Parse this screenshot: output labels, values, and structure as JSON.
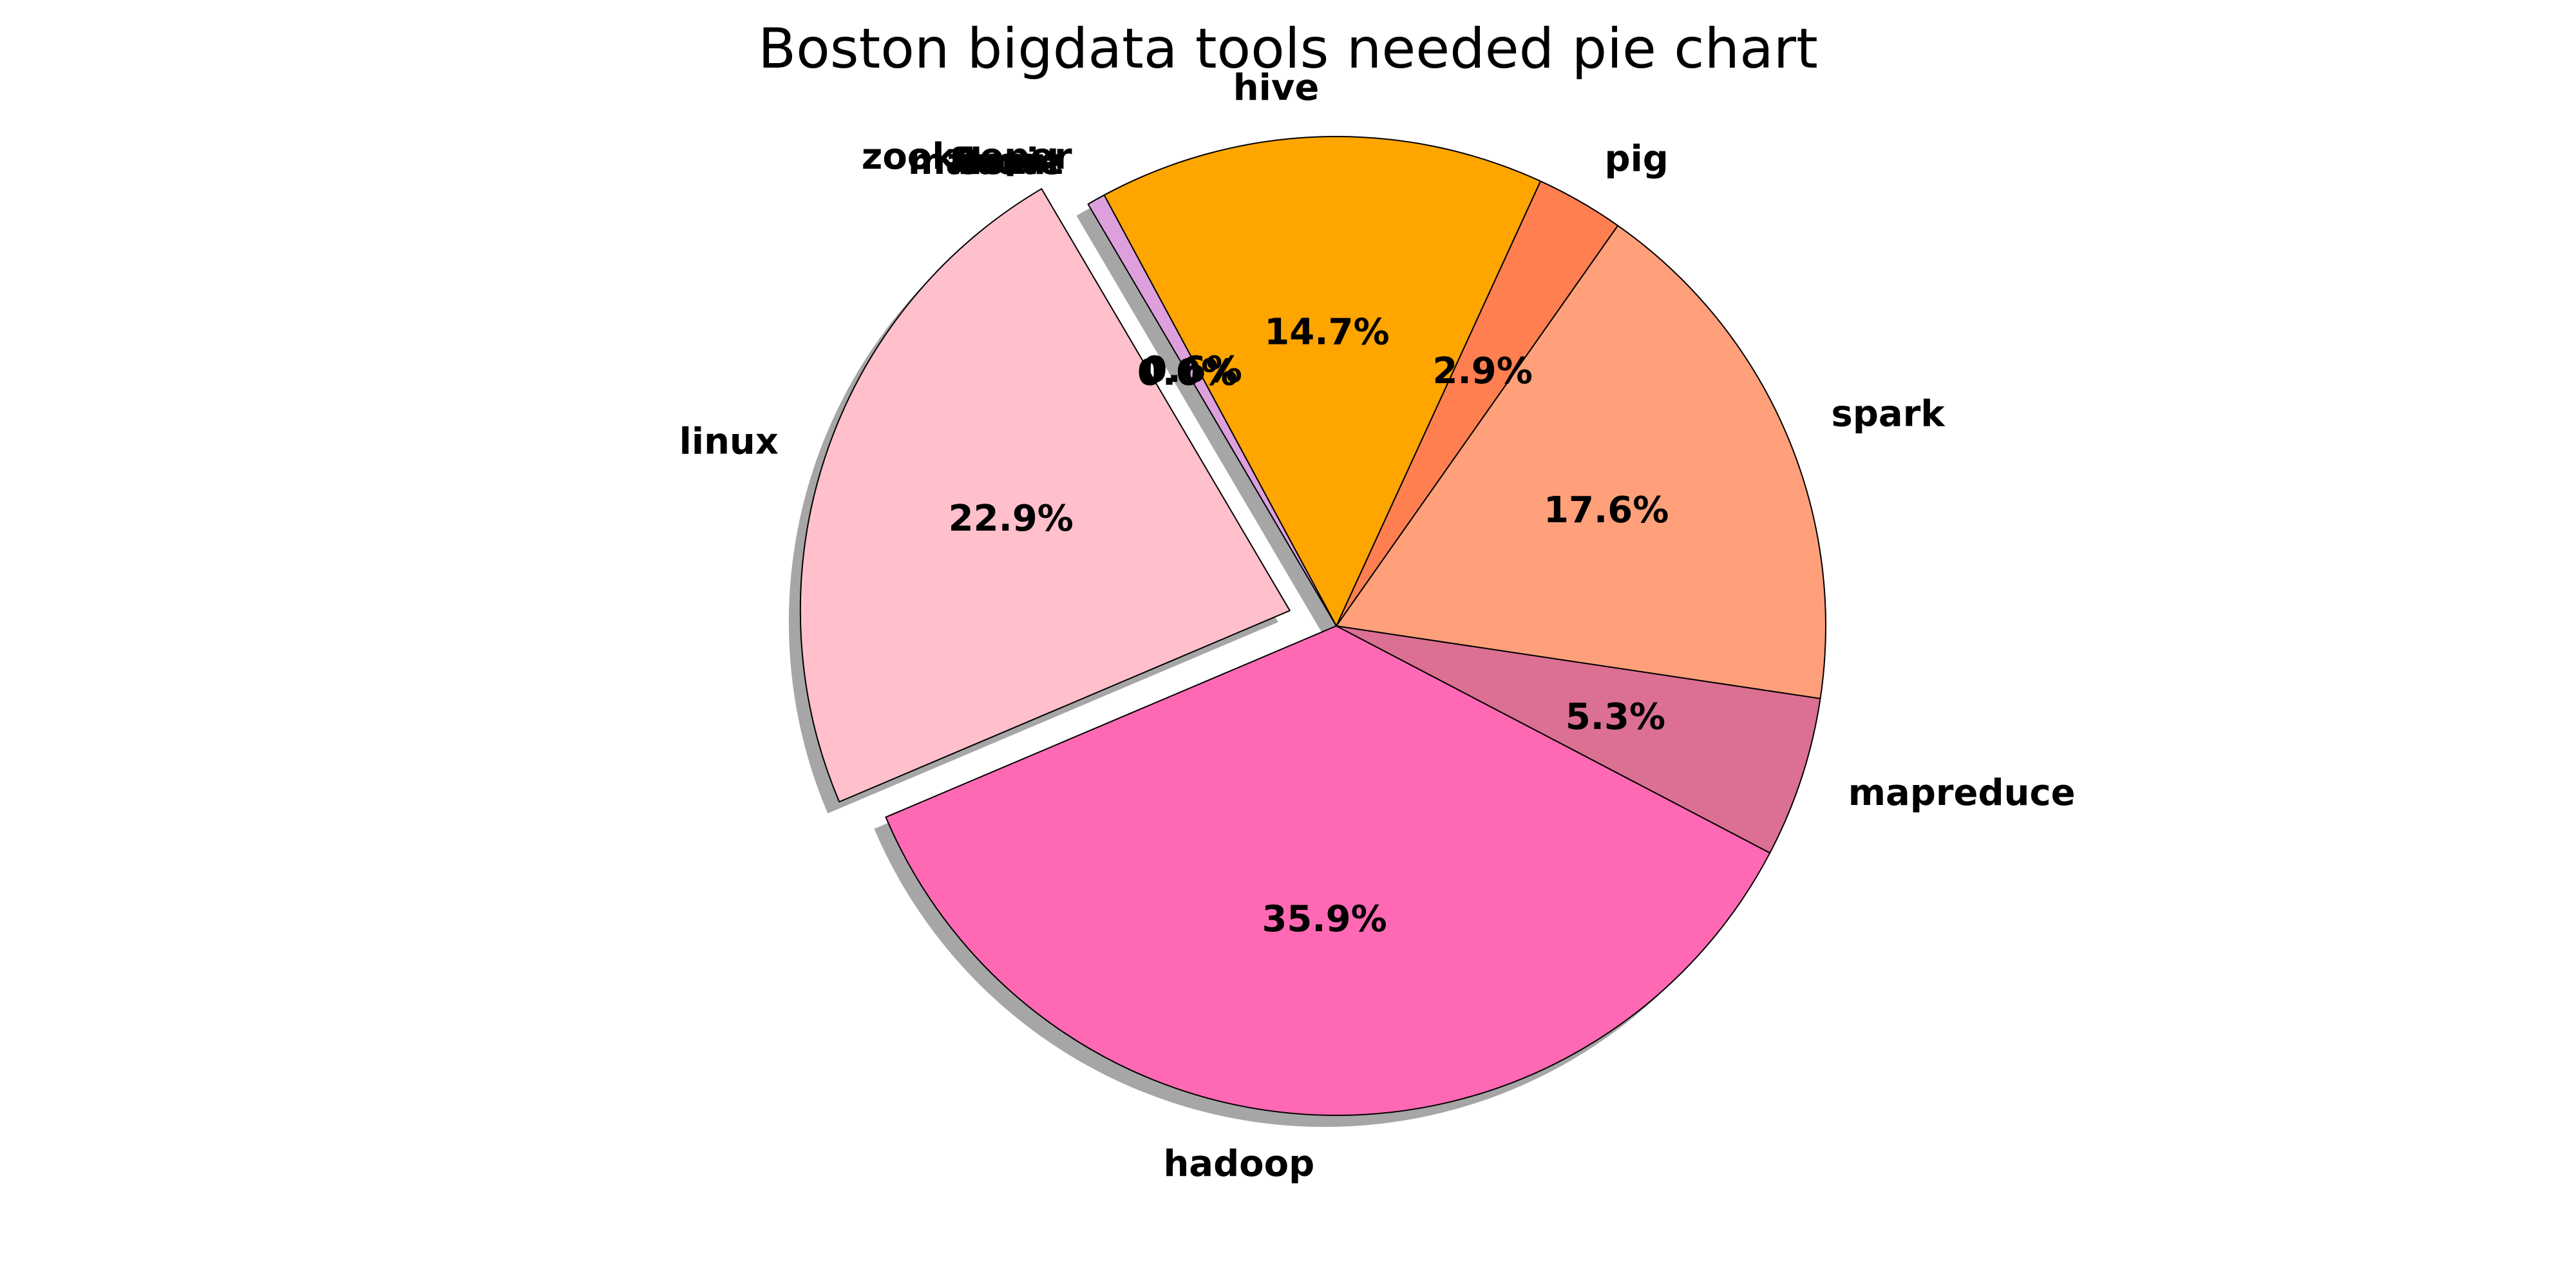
{
  "chart_data": {
    "type": "pie",
    "title": "Boston bigdata tools needed pie chart",
    "autopct_format": "%.1f%%",
    "start_angle_deg": -157,
    "counterclockwise": true,
    "shadow": true,
    "slices": [
      {
        "label": "hadoop",
        "percent": 35.9,
        "pct_text": "35.9%",
        "color": "#FF69B4",
        "explode": 0
      },
      {
        "label": "mapreduce",
        "percent": 5.3,
        "pct_text": "5.3%",
        "color": "#DB7093",
        "explode": 0
      },
      {
        "label": "spark",
        "percent": 17.6,
        "pct_text": "17.6%",
        "color": "#FFA07A",
        "explode": 0
      },
      {
        "label": "pig",
        "percent": 2.9,
        "pct_text": "2.9%",
        "color": "#FF7F50",
        "explode": 0
      },
      {
        "label": "hive",
        "percent": 14.7,
        "pct_text": "14.7%",
        "color": "#FFA500",
        "explode": 0
      },
      {
        "label": "zookeeper",
        "percent": 0.6,
        "pct_text": "0.6%",
        "color": "#DDA0DD",
        "explode": 0
      },
      {
        "label": "flume",
        "percent": 0.0,
        "pct_text": "0.0%",
        "color": "#D8BFD8",
        "explode": 0
      },
      {
        "label": "oozie",
        "percent": 0.0,
        "pct_text": "0.0%",
        "color": "#DA70D6",
        "explode": 0
      },
      {
        "label": "mahout",
        "percent": 0.0,
        "pct_text": "0.0%",
        "color": "#EE82EE",
        "explode": 0
      },
      {
        "label": "linux",
        "percent": 22.9,
        "pct_text": "22.9%",
        "color": "#FFC0CB",
        "explode": 0.1
      }
    ]
  }
}
